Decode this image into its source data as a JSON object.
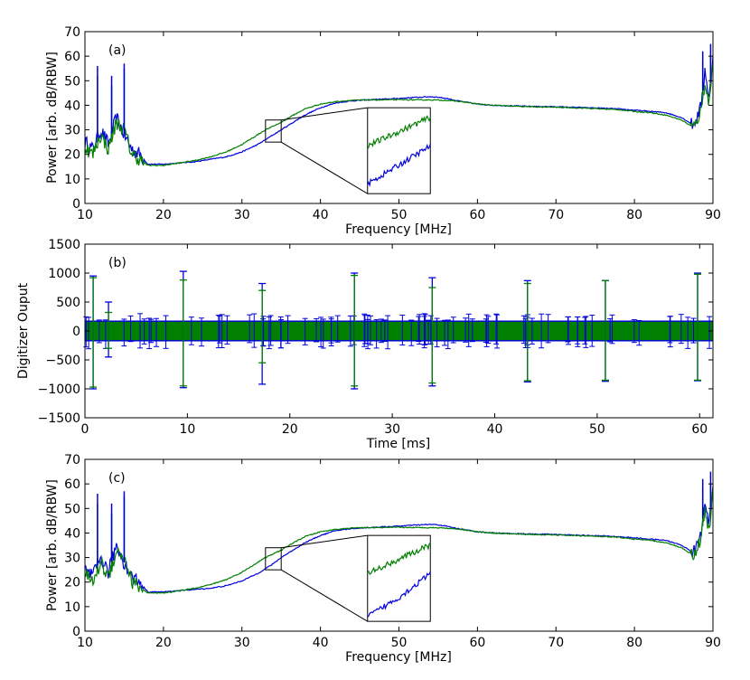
{
  "chart_data": [
    {
      "type": "line",
      "panel_label": "(a)",
      "xlabel": "Frequency [MHz]",
      "ylabel": "Power [arb. dB/RBW]",
      "xlim": [
        10,
        90
      ],
      "ylim": [
        0,
        70
      ],
      "xticks": [
        10,
        20,
        30,
        40,
        50,
        60,
        70,
        80,
        90
      ],
      "yticks": [
        0,
        10,
        20,
        30,
        40,
        50,
        60,
        70
      ],
      "colors": {
        "blue": "#0000dd",
        "green": "#007f00"
      },
      "series": [
        {
          "name": "blue",
          "x": [
            10,
            11,
            12,
            13,
            14,
            15,
            16,
            17,
            18,
            20,
            22,
            24,
            26,
            28,
            30,
            32,
            33,
            34,
            35,
            36,
            38,
            40,
            42,
            44,
            46,
            48,
            50,
            52,
            54,
            55,
            56,
            58,
            60,
            62,
            64,
            66,
            68,
            70,
            72,
            74,
            76,
            78,
            80,
            82,
            84,
            86,
            87,
            87.5,
            88,
            88.5,
            89,
            89.5,
            90
          ],
          "y": [
            25,
            22,
            30,
            24,
            35,
            28,
            22,
            20,
            16,
            16,
            16.5,
            17,
            18,
            19,
            21,
            24,
            26,
            28,
            30,
            32,
            36,
            39,
            41,
            41.8,
            42.2,
            42.5,
            42.8,
            43.2,
            43.5,
            43.3,
            42.8,
            41.5,
            40.5,
            40,
            39.8,
            39.6,
            39.5,
            39.4,
            39.2,
            39,
            38.8,
            38.5,
            38,
            37.5,
            37,
            35,
            33,
            32,
            35,
            40,
            55,
            42,
            60
          ]
        },
        {
          "name": "green",
          "x": [
            10,
            11,
            12,
            13,
            14,
            15,
            16,
            17,
            18,
            20,
            22,
            24,
            26,
            28,
            30,
            32,
            33,
            34,
            35,
            36,
            38,
            40,
            42,
            44,
            46,
            48,
            50,
            52,
            54,
            55,
            56,
            58,
            60,
            62,
            64,
            66,
            68,
            70,
            72,
            74,
            76,
            78,
            80,
            82,
            84,
            86,
            87,
            87.5,
            88,
            88.5,
            89,
            89.5,
            90
          ],
          "y": [
            23,
            20,
            28,
            22,
            33,
            30,
            20,
            18,
            15.5,
            15.5,
            16.5,
            17.5,
            19,
            21,
            24,
            28,
            30,
            31.5,
            33,
            35,
            38.5,
            40.5,
            41.5,
            42,
            42.2,
            42.2,
            42.3,
            42.2,
            42.2,
            42.1,
            42,
            41.5,
            40.5,
            40,
            39.7,
            39.5,
            39.3,
            39.2,
            39,
            38.8,
            38.5,
            38.2,
            37.5,
            37,
            36,
            34,
            32,
            31,
            34,
            38,
            50,
            40,
            58
          ]
        }
      ],
      "spikes": [
        {
          "x": 11.6,
          "blue": 56,
          "green": 52
        },
        {
          "x": 13.4,
          "blue": 52,
          "green": 48
        },
        {
          "x": 15.0,
          "blue": 57,
          "green": 55
        },
        {
          "x": 88.7,
          "blue": 62,
          "green": 58
        },
        {
          "x": 89.7,
          "blue": 65,
          "green": 60
        }
      ],
      "zoom_box": {
        "x": [
          33,
          35
        ],
        "y": [
          25,
          34
        ]
      },
      "inset": {
        "x": [
          46,
          54
        ],
        "y": [
          4,
          39
        ]
      }
    },
    {
      "type": "line",
      "panel_label": "(b)",
      "xlabel": "Time [ms]",
      "ylabel": "Digitizer Ouput",
      "xlim": [
        0,
        61.3
      ],
      "ylim": [
        -1500,
        1500
      ],
      "xticks": [
        0,
        10,
        20,
        30,
        40,
        50,
        60
      ],
      "yticks": [
        -1500,
        -1000,
        -500,
        0,
        500,
        1000,
        1500
      ],
      "band": {
        "low": -180,
        "high": 180
      },
      "spikes": [
        {
          "t": 0.8,
          "blue_max": 950,
          "blue_min": -1000,
          "green_max": 920,
          "green_min": -970
        },
        {
          "t": 2.3,
          "blue_max": 500,
          "blue_min": -450,
          "green_max": 320,
          "green_min": -300
        },
        {
          "t": 9.6,
          "blue_max": 1030,
          "blue_min": -980,
          "green_max": 880,
          "green_min": -950
        },
        {
          "t": 17.3,
          "blue_max": 820,
          "blue_min": -920,
          "green_max": 700,
          "green_min": -550
        },
        {
          "t": 26.3,
          "blue_max": 1000,
          "blue_min": -1000,
          "green_max": 960,
          "green_min": -950
        },
        {
          "t": 33.9,
          "blue_max": 920,
          "blue_min": -950,
          "green_max": 750,
          "green_min": -900
        },
        {
          "t": 43.2,
          "blue_max": 870,
          "blue_min": -880,
          "green_max": 820,
          "green_min": -860
        },
        {
          "t": 50.8,
          "blue_max": 870,
          "blue_min": -870,
          "green_max": 870,
          "green_min": -850
        },
        {
          "t": 59.8,
          "blue_max": 1000,
          "blue_min": -860,
          "green_max": 980,
          "green_min": -850
        }
      ]
    },
    {
      "type": "line",
      "panel_label": "(c)",
      "xlabel": "Frequency [MHz]",
      "ylabel": "Power [arb. dB/RBW]",
      "xlim": [
        10,
        90
      ],
      "ylim": [
        0,
        70
      ],
      "xticks": [
        10,
        20,
        30,
        40,
        50,
        60,
        70,
        80,
        90
      ],
      "yticks": [
        0,
        10,
        20,
        30,
        40,
        50,
        60,
        70
      ],
      "series": [
        {
          "name": "blue",
          "x": [
            10,
            11,
            12,
            13,
            14,
            15,
            16,
            17,
            18,
            20,
            22,
            24,
            26,
            28,
            30,
            32,
            33,
            34,
            35,
            36,
            38,
            40,
            42,
            44,
            46,
            48,
            50,
            52,
            54,
            55,
            56,
            58,
            60,
            62,
            64,
            66,
            68,
            70,
            72,
            74,
            76,
            78,
            80,
            82,
            84,
            86,
            87,
            87.5,
            88,
            88.5,
            89,
            89.5,
            90
          ],
          "y": [
            25,
            22,
            30,
            24,
            35,
            28,
            22,
            20,
            16,
            16,
            16.5,
            17,
            17.5,
            18.5,
            20.5,
            23.5,
            25.5,
            27.5,
            30,
            32,
            36,
            39,
            41,
            41.8,
            42.2,
            42.5,
            42.8,
            43.2,
            43.5,
            43.3,
            42.8,
            41.5,
            40.5,
            40,
            39.8,
            39.6,
            39.5,
            39.4,
            39.2,
            39,
            38.8,
            38.5,
            38,
            37.5,
            37,
            35,
            33,
            32,
            35,
            40,
            55,
            42,
            60
          ]
        },
        {
          "name": "green",
          "x": [
            10,
            11,
            12,
            13,
            14,
            15,
            16,
            17,
            18,
            20,
            22,
            24,
            26,
            28,
            30,
            32,
            33,
            34,
            35,
            36,
            38,
            40,
            42,
            44,
            46,
            48,
            50,
            52,
            54,
            55,
            56,
            58,
            60,
            62,
            64,
            66,
            68,
            70,
            72,
            74,
            76,
            78,
            80,
            82,
            84,
            86,
            87,
            87.5,
            88,
            88.5,
            89,
            89.5,
            90
          ],
          "y": [
            23,
            20,
            28,
            22,
            33,
            30,
            20,
            18,
            15.5,
            15.5,
            16.5,
            17.5,
            19,
            21,
            24,
            28,
            30,
            31.5,
            33,
            35,
            38.5,
            40.5,
            41.5,
            42,
            42.2,
            42.2,
            42.3,
            42.2,
            42.2,
            42.1,
            42,
            41.5,
            40.5,
            40,
            39.7,
            39.5,
            39.3,
            39.2,
            39,
            38.8,
            38.5,
            38.2,
            37.5,
            37,
            36,
            34,
            32,
            31,
            34,
            38,
            50,
            40,
            58
          ]
        }
      ],
      "spikes": [
        {
          "x": 11.6,
          "blue": 56,
          "green": 52
        },
        {
          "x": 13.4,
          "blue": 52,
          "green": 48
        },
        {
          "x": 15.0,
          "blue": 57,
          "green": 55
        },
        {
          "x": 88.7,
          "blue": 62,
          "green": 58
        },
        {
          "x": 89.7,
          "blue": 65,
          "green": 60
        }
      ],
      "zoom_box": {
        "x": [
          33,
          35
        ],
        "y": [
          25,
          34
        ]
      },
      "inset": {
        "x": [
          46,
          54
        ],
        "y": [
          4,
          39
        ]
      }
    }
  ]
}
